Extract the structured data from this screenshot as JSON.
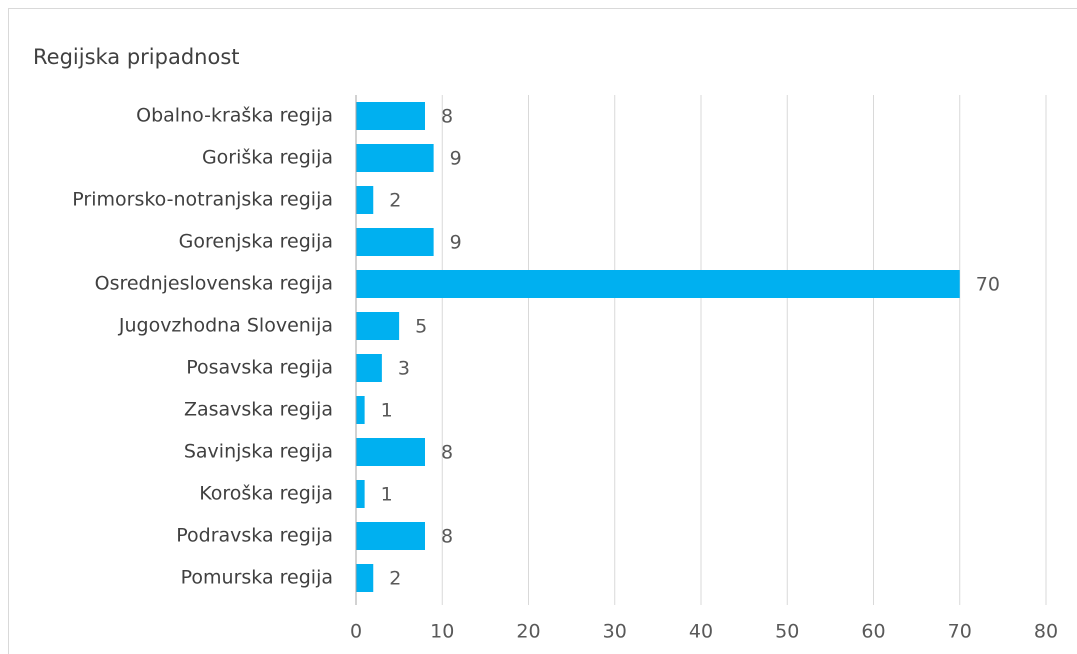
{
  "chart_data": {
    "type": "bar",
    "orientation": "horizontal",
    "title": "Regijska pripadnost",
    "categories": [
      "Obalno-kraška regija",
      "Goriška regija",
      "Primorsko-notranjska regija",
      "Gorenjska regija",
      "Osrednjeslovenska regija",
      "Jugovzhodna Slovenija",
      "Posavska regija",
      "Zasavska regija",
      "Savinjska regija",
      "Koroška regija",
      "Podravska regija",
      "Pomurska regija"
    ],
    "values": [
      8,
      9,
      2,
      9,
      70,
      5,
      3,
      1,
      8,
      1,
      8,
      2
    ],
    "color": "#00b0f0",
    "xlim": [
      0,
      80
    ],
    "xticks": [
      0,
      10,
      20,
      30,
      40,
      50,
      60,
      70,
      80
    ],
    "grid": true,
    "data_labels": true
  }
}
